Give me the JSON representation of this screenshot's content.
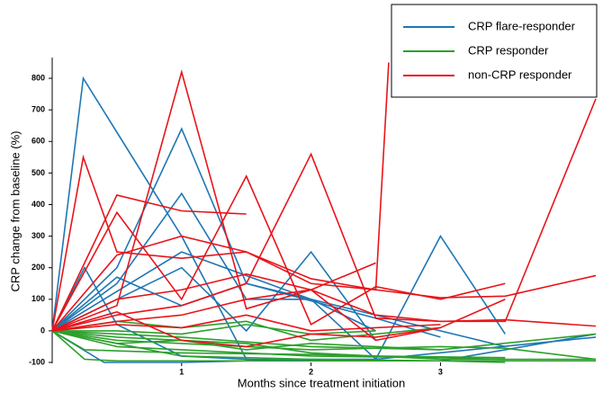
{
  "chart_data": {
    "type": "line",
    "xlabel": "Months since treatment initiation",
    "ylabel": "CRP change from baseline (%)",
    "xlim": [
      0,
      4.2
    ],
    "ylim": [
      -100,
      860
    ],
    "xticks": [
      1,
      2,
      3
    ],
    "yticks": [
      -100,
      0,
      100,
      200,
      300,
      400,
      500,
      600,
      700,
      800
    ],
    "legend": "upper right",
    "series": [
      {
        "name": "CRP flare-responder",
        "color": "#1f77b4",
        "lines": [
          {
            "x": [
              0,
              0.24,
              1,
              1.5,
              2.5
            ],
            "values": [
              0,
              800,
              300,
              -90,
              -95
            ]
          },
          {
            "x": [
              0,
              0.5,
              1,
              1.5,
              2,
              3.5
            ],
            "values": [
              0,
              200,
              640,
              150,
              100,
              -50
            ]
          },
          {
            "x": [
              0,
              0.5,
              1,
              1.5,
              2,
              2.5
            ],
            "values": [
              0,
              150,
              435,
              100,
              100,
              0
            ]
          },
          {
            "x": [
              0,
              1,
              2,
              2.5,
              3,
              3.5
            ],
            "values": [
              0,
              250,
              100,
              -90,
              300,
              -10
            ]
          },
          {
            "x": [
              0,
              1,
              1.5,
              2,
              2.5
            ],
            "values": [
              0,
              200,
              0,
              250,
              -30
            ]
          },
          {
            "x": [
              0,
              0.25,
              0.5,
              1,
              1.5,
              2,
              3,
              3.5,
              4.2
            ],
            "values": [
              0,
              200,
              20,
              -80,
              -90,
              -95,
              -95,
              -60,
              -10
            ]
          },
          {
            "x": [
              0,
              0.5,
              1,
              1.5,
              2.5,
              3
            ],
            "values": [
              0,
              170,
              80,
              150,
              40,
              -20
            ]
          },
          {
            "x": [
              0,
              0.4,
              1,
              1.5,
              2,
              2.5,
              4.2
            ],
            "values": [
              0,
              -100,
              -100,
              -95,
              -90,
              -90,
              -20
            ]
          }
        ]
      },
      {
        "name": "CRP responder",
        "color": "#2ca02c",
        "lines": [
          {
            "x": [
              0,
              0.25,
              0.5,
              1,
              2,
              3,
              4.2
            ],
            "values": [
              0,
              -90,
              -95,
              -95,
              -95,
              -95,
              -95
            ]
          },
          {
            "x": [
              0,
              0.5,
              1,
              1.5,
              2,
              3,
              3.5
            ],
            "values": [
              0,
              -50,
              -60,
              -70,
              -80,
              -85,
              -90
            ]
          },
          {
            "x": [
              0,
              0.5,
              1,
              1.5,
              2,
              2.5,
              3,
              3.5,
              4.2
            ],
            "values": [
              0,
              -30,
              -40,
              -50,
              -60,
              -55,
              -50,
              -55,
              -90
            ]
          },
          {
            "x": [
              0,
              0.5,
              1,
              1.5,
              2,
              3,
              4.2
            ],
            "values": [
              0,
              -20,
              -30,
              -40,
              -70,
              -90,
              -90
            ]
          },
          {
            "x": [
              0,
              0.5,
              1,
              1.5,
              2,
              2.5,
              3
            ],
            "values": [
              0,
              30,
              10,
              30,
              -30,
              -10,
              10
            ]
          },
          {
            "x": [
              0,
              1,
              1.5,
              2,
              3,
              3.5
            ],
            "values": [
              0,
              -80,
              -85,
              -90,
              -95,
              -100
            ]
          },
          {
            "x": [
              0,
              0.5,
              1,
              2,
              3
            ],
            "values": [
              0,
              -10,
              -20,
              -50,
              -60
            ]
          },
          {
            "x": [
              0,
              0.5,
              1,
              1.5,
              2,
              2.5
            ],
            "values": [
              0,
              0,
              -10,
              20,
              -10,
              0
            ]
          },
          {
            "x": [
              0,
              0.25,
              1,
              2,
              2.5,
              3.5
            ],
            "values": [
              0,
              -60,
              -70,
              -75,
              -80,
              -85
            ]
          },
          {
            "x": [
              0,
              0.5,
              1,
              1.5,
              2,
              3,
              4.2
            ],
            "values": [
              0,
              -40,
              -30,
              -60,
              -40,
              -60,
              -10
            ]
          }
        ]
      },
      {
        "name": "non-CRP responder",
        "color": "#e8141a",
        "lines": [
          {
            "x": [
              0,
              0.24,
              0.5,
              1,
              1.5,
              2,
              2.5,
              2.6
            ],
            "values": [
              0,
              550,
              250,
              230,
              250,
              150,
              130,
              850
            ]
          },
          {
            "x": [
              0,
              0.5,
              1,
              1.5,
              2,
              2.5,
              3,
              3.5,
              4.2
            ],
            "values": [
              0,
              80,
              820,
              70,
              130,
              50,
              30,
              30,
              735
            ]
          },
          {
            "x": [
              0,
              0.5,
              1,
              1.5
            ],
            "values": [
              0,
              430,
              380,
              370
            ]
          },
          {
            "x": [
              0,
              0.5,
              1,
              1.5,
              2,
              2.5,
              3,
              3.5
            ],
            "values": [
              0,
              375,
              100,
              490,
              20,
              140,
              100,
              150
            ]
          },
          {
            "x": [
              0,
              0.5,
              1,
              1.5,
              2,
              2.5,
              3,
              3.5,
              4.2
            ],
            "values": [
              0,
              240,
              300,
              250,
              165,
              130,
              105,
              110,
              175
            ]
          },
          {
            "x": [
              0,
              0.5,
              1,
              1.5,
              2,
              2.5,
              3,
              3.5,
              4.2
            ],
            "values": [
              0,
              50,
              80,
              150,
              560,
              40,
              30,
              35,
              15
            ]
          },
          {
            "x": [
              0,
              0.5,
              1,
              1.5,
              2,
              2.5
            ],
            "values": [
              0,
              100,
              130,
              180,
              130,
              215
            ]
          },
          {
            "x": [
              0,
              0.5,
              1,
              1.5,
              2,
              2.5,
              3
            ],
            "values": [
              0,
              30,
              50,
              100,
              130,
              -30,
              10
            ]
          },
          {
            "x": [
              0,
              0.5,
              1,
              1.5,
              2,
              2.5,
              3,
              3.5
            ],
            "values": [
              0,
              60,
              -30,
              -50,
              -10,
              -20,
              10,
              100
            ]
          },
          {
            "x": [
              0,
              0.5,
              1,
              1.5,
              2,
              3
            ],
            "values": [
              0,
              20,
              10,
              50,
              0,
              20
            ]
          }
        ]
      }
    ]
  }
}
